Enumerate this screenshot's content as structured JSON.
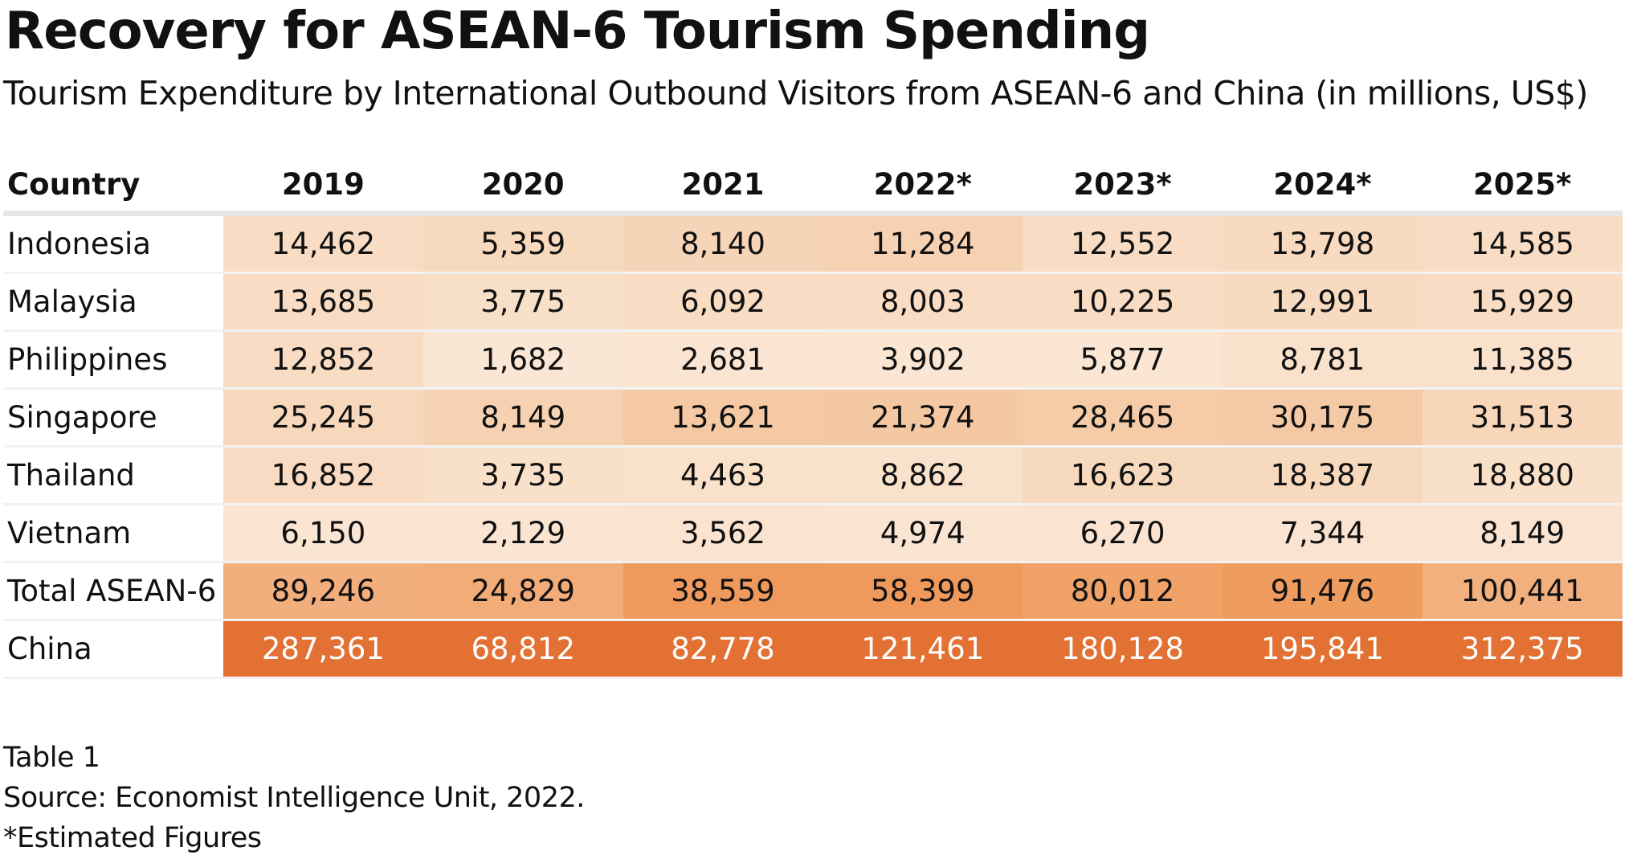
{
  "title": "Recovery for ASEAN-6 Tourism Spending",
  "subtitle": "Tourism Expenditure by International Outbound Visitors from ASEAN-6 and China (in millions, US$)",
  "chart_data": {
    "type": "table",
    "columns": [
      "Country",
      "2019",
      "2020",
      "2021",
      "2022*",
      "2023*",
      "2024*",
      "2025*"
    ],
    "rows": [
      {
        "label": "Indonesia",
        "values": [
          "14,462",
          "5,359",
          "8,140",
          "11,284",
          "12,552",
          "13,798",
          "14,585"
        ],
        "colors": [
          "#f8dcc3",
          "#f7d9be",
          "#f6d4b7",
          "#f6d2b3",
          "#f8dcc3",
          "#f7dac0",
          "#f8dcc3"
        ]
      },
      {
        "label": "Malaysia",
        "values": [
          "13,685",
          "3,775",
          "6,092",
          "8,003",
          "10,225",
          "12,991",
          "15,929"
        ],
        "colors": [
          "#f8dcc3",
          "#f8dfc8",
          "#f8dcc3",
          "#f8dcc4",
          "#f8dcc3",
          "#f7dbc1",
          "#f8dcc3"
        ]
      },
      {
        "label": "Philippines",
        "values": [
          "12,852",
          "1,682",
          "2,681",
          "3,902",
          "5,877",
          "8,781",
          "11,385"
        ],
        "colors": [
          "#f8dcc3",
          "#fae6d4",
          "#fae5d2",
          "#fae6d3",
          "#fae6d3",
          "#f9e1cb",
          "#f9e1cb"
        ]
      },
      {
        "label": "Singapore",
        "values": [
          "25,245",
          "8,149",
          "13,621",
          "21,374",
          "28,465",
          "30,175",
          "31,513"
        ],
        "colors": [
          "#f8d8bd",
          "#f6d2b3",
          "#f4c9a4",
          "#f4c8a2",
          "#f5cba8",
          "#f4caa6",
          "#f7d6b9"
        ]
      },
      {
        "label": "Thailand",
        "values": [
          "16,852",
          "3,735",
          "4,463",
          "8,862",
          "16,623",
          "18,387",
          "18,880"
        ],
        "colors": [
          "#f8dbc2",
          "#f9e0c9",
          "#f9e1ca",
          "#f9e2cc",
          "#f7d9bd",
          "#f7d9be",
          "#f9e0c8"
        ]
      },
      {
        "label": "Vietnam",
        "values": [
          "6,150",
          "2,129",
          "3,562",
          "4,974",
          "6,270",
          "7,344",
          "8,149"
        ],
        "colors": [
          "#fae5d2",
          "#fae5d2",
          "#fae4d0",
          "#fae5d2",
          "#fae4d1",
          "#fae4d1",
          "#fae4d1"
        ]
      },
      {
        "label": "Total ASEAN-6",
        "values": [
          "89,246",
          "24,829",
          "38,559",
          "58,399",
          "80,012",
          "91,476",
          "100,441"
        ],
        "colors": [
          "#f2ae7c",
          "#f2ac78",
          "#ef9a5c",
          "#ef9a5c",
          "#f0a268",
          "#ef9c5f",
          "#f2b07f"
        ]
      },
      {
        "label": "China",
        "values": [
          "287,361",
          "68,812",
          "82,778",
          "121,461",
          "180,128",
          "195,841",
          "312,375"
        ],
        "colors": [
          "#e27133",
          "#e27133",
          "#e27133",
          "#e27133",
          "#e27133",
          "#e27133",
          "#e27133"
        ],
        "text_color": "#ffffff"
      }
    ]
  },
  "notes": {
    "label": "Table 1",
    "source": "Source: Economist Intelligence Unit, 2022.",
    "footnote": "*Estimated Figures"
  }
}
